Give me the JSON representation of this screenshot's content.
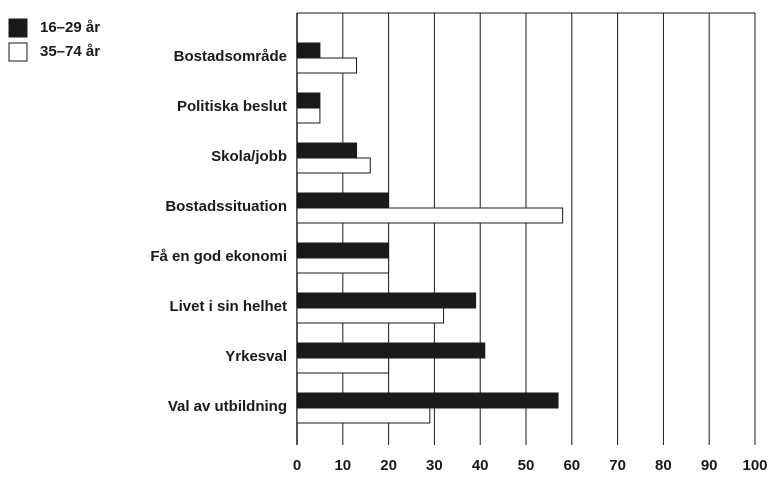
{
  "chart_data": {
    "type": "hbar",
    "categories": [
      "Bostadsområde",
      "Politiska beslut",
      "Skola/jobb",
      "Bostadssituation",
      "Få en god ekonomi",
      "Livet i sin helhet",
      "Yrkesval",
      "Val av utbildning"
    ],
    "series": [
      {
        "name": "16–29 år",
        "color": "#1a1a1a",
        "values": [
          5,
          5,
          13,
          20,
          20,
          39,
          41,
          57
        ]
      },
      {
        "name": "35–74 år",
        "color": "#ffffff",
        "values": [
          13,
          5,
          16,
          58,
          20,
          32,
          20,
          29
        ]
      }
    ],
    "xlim": [
      0,
      100
    ],
    "xticks": [
      0,
      10,
      20,
      30,
      40,
      50,
      60,
      70,
      80,
      90,
      100
    ],
    "grid": true,
    "legend": "top-left"
  }
}
